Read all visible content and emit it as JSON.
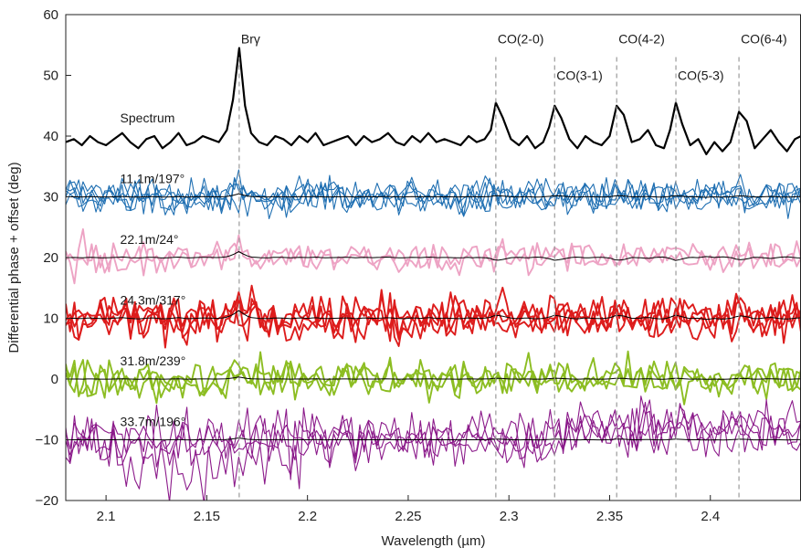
{
  "chart_data": {
    "type": "line",
    "xlabel": "Wavelength (µm)",
    "ylabel": "Differential phase + offset (deg)",
    "xlim": [
      2.08,
      2.445
    ],
    "ylim": [
      -20,
      60
    ],
    "xticks": [
      2.1,
      2.15,
      2.2,
      2.25,
      2.3,
      2.35,
      2.4
    ],
    "xtick_labels": [
      "2.1",
      "2.15",
      "2.2",
      "2.25",
      "2.3",
      "2.35",
      "2.4"
    ],
    "yticks": [
      -20,
      -10,
      0,
      10,
      20,
      30,
      40,
      50,
      60
    ],
    "ytick_labels": [
      "−20",
      "−10",
      "0",
      "10",
      "20",
      "30",
      "40",
      "50",
      "60"
    ],
    "grid": false,
    "line_markers": [
      {
        "label": "Brγ",
        "x": 2.1661,
        "label_y": 56
      },
      {
        "label": "CO(2-0)",
        "x": 2.2935,
        "label_y": 56
      },
      {
        "label": "CO(3-1)",
        "x": 2.3227,
        "label_y": 50
      },
      {
        "label": "CO(4-2)",
        "x": 2.3535,
        "label_y": 56
      },
      {
        "label": "CO(5-3)",
        "x": 2.3829,
        "label_y": 50
      },
      {
        "label": "CO(6-4)",
        "x": 2.4142,
        "label_y": 56
      }
    ],
    "series_labels": [
      {
        "text": "Spectrum",
        "x": 2.107,
        "y": 43
      },
      {
        "text": "11.1m/197°",
        "x": 2.107,
        "y": 33
      },
      {
        "text": "22.1m/24°",
        "x": 2.107,
        "y": 23
      },
      {
        "text": "24.3m/317°",
        "x": 2.107,
        "y": 13
      },
      {
        "text": "31.8m/239°",
        "x": 2.107,
        "y": 3
      },
      {
        "text": "33.7m/196°",
        "x": 2.107,
        "y": -7
      }
    ],
    "spectrum": {
      "color": "#000000",
      "x": [
        2.08,
        2.084,
        2.088,
        2.092,
        2.096,
        2.1,
        2.104,
        2.108,
        2.112,
        2.116,
        2.12,
        2.124,
        2.128,
        2.132,
        2.136,
        2.14,
        2.144,
        2.148,
        2.152,
        2.156,
        2.16,
        2.163,
        2.1661,
        2.169,
        2.172,
        2.176,
        2.18,
        2.184,
        2.188,
        2.192,
        2.196,
        2.2,
        2.204,
        2.208,
        2.212,
        2.216,
        2.22,
        2.224,
        2.228,
        2.232,
        2.236,
        2.24,
        2.244,
        2.248,
        2.252,
        2.256,
        2.26,
        2.264,
        2.268,
        2.272,
        2.276,
        2.28,
        2.284,
        2.288,
        2.291,
        2.2935,
        2.297,
        2.301,
        2.305,
        2.309,
        2.313,
        2.317,
        2.32,
        2.3227,
        2.326,
        2.33,
        2.334,
        2.338,
        2.342,
        2.346,
        2.35,
        2.3535,
        2.357,
        2.361,
        2.365,
        2.369,
        2.373,
        2.377,
        2.38,
        2.3829,
        2.386,
        2.39,
        2.394,
        2.398,
        2.402,
        2.406,
        2.41,
        2.4142,
        2.418,
        2.422,
        2.426,
        2.43,
        2.434,
        2.438,
        2.442,
        2.445
      ],
      "y": [
        39,
        39.5,
        38.5,
        40,
        39,
        38.5,
        39.5,
        40.5,
        39,
        38,
        39.5,
        40,
        38,
        39,
        40.5,
        38.5,
        39,
        40,
        39.5,
        39,
        41,
        46,
        54.5,
        45,
        40.5,
        39,
        38.5,
        40,
        39.5,
        38.5,
        40,
        39,
        40.5,
        38.5,
        39,
        39.5,
        40,
        38.5,
        40,
        39,
        39.5,
        40.5,
        39,
        38.5,
        40,
        39,
        40.5,
        39,
        39.5,
        39,
        38.5,
        40,
        39,
        39.5,
        41,
        45.5,
        43,
        39.5,
        38.5,
        40,
        38,
        39,
        41.5,
        45,
        43,
        39.5,
        38,
        40,
        39,
        38.5,
        40,
        45,
        43.5,
        39,
        39.5,
        41,
        38.5,
        38,
        41,
        45.5,
        42,
        38.5,
        39.5,
        37,
        39,
        37.5,
        39,
        44,
        42.5,
        38,
        39.5,
        41,
        39,
        37.5,
        39.5,
        40
      ]
    },
    "groups": [
      {
        "name": "11.1m/197°",
        "offset": 30,
        "color": "#1f6fb2",
        "n": 5,
        "amp": 1.4,
        "ref_amp": 0.5,
        "thin": true
      },
      {
        "name": "22.1m/24°",
        "offset": 20,
        "color": "#eda3c4",
        "n": 2,
        "amp": 1.2,
        "ref_amp": 1.0,
        "thin": false
      },
      {
        "name": "24.3m/317°",
        "offset": 10,
        "color": "#dd1c1c",
        "n": 4,
        "amp": 1.8,
        "ref_amp": 1.3,
        "thin": false
      },
      {
        "name": "31.8m/239°",
        "offset": 0,
        "color": "#8cbd22",
        "n": 3,
        "amp": 1.6,
        "ref_amp": 0.35,
        "thin": false
      },
      {
        "name": "33.7m/196°",
        "offset": -10,
        "color": "#8b1a8a",
        "n": 4,
        "amp": 2.2,
        "ref_amp": 0.3,
        "thin": true
      }
    ]
  }
}
